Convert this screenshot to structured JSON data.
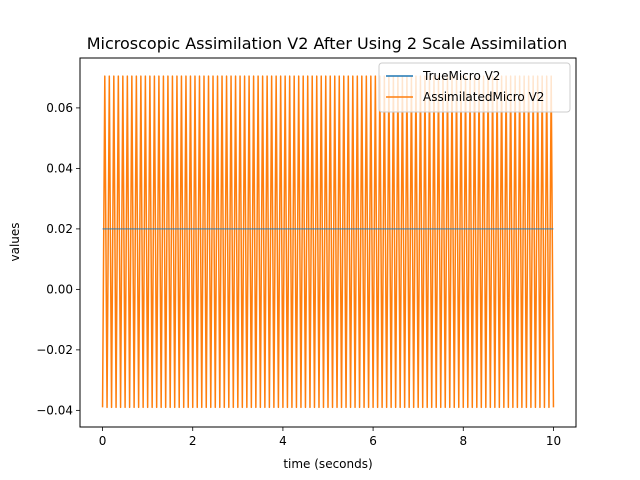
{
  "chart_data": {
    "type": "line",
    "title": "Microscopic Assimilation V2 After Using 2 Scale Assimilation",
    "xlabel": "time (seconds)",
    "ylabel": "values",
    "xlim": [
      -0.5,
      10.5
    ],
    "ylim": [
      -0.0455,
      0.0765
    ],
    "xticks": [
      0,
      2,
      4,
      6,
      8,
      10
    ],
    "xtick_labels": [
      "0",
      "2",
      "4",
      "6",
      "8",
      "10"
    ],
    "yticks": [
      -0.04,
      -0.02,
      0.0,
      0.02,
      0.04,
      0.06
    ],
    "ytick_labels": [
      "−0.04",
      "−0.02",
      "0.00",
      "0.02",
      "0.04",
      "0.06"
    ],
    "grid": false,
    "legend_position": "top-right",
    "series": [
      {
        "name": "TrueMicro V2",
        "color": "#1f77b4",
        "x": [
          0,
          10
        ],
        "y": [
          0.02,
          0.02
        ]
      },
      {
        "name": "AssimilatedMicro V2",
        "color": "#ff7f0e",
        "oscillation": {
          "x_start": 0,
          "x_end": 10,
          "cycles": 100,
          "min": -0.039,
          "max": 0.0705,
          "start_value": -0.039
        }
      }
    ]
  }
}
